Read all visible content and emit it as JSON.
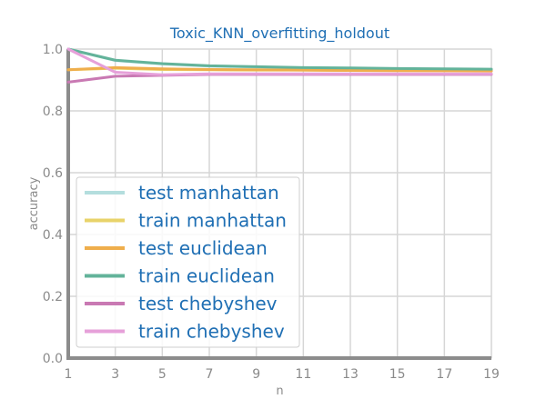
{
  "chart_data": {
    "type": "line",
    "title": "Toxic_KNN_overfitting_holdout",
    "xlabel": "n",
    "ylabel": "accuracy",
    "x": [
      1,
      3,
      5,
      7,
      9,
      11,
      13,
      15,
      17,
      19
    ],
    "x_ticks": [
      "1",
      "3",
      "5",
      "7",
      "9",
      "11",
      "13",
      "15",
      "17",
      "19"
    ],
    "y_ticks": [
      "0.0",
      "0.2",
      "0.4",
      "0.6",
      "0.8",
      "1.0"
    ],
    "xlim": [
      1,
      19
    ],
    "ylim": [
      0,
      1
    ],
    "grid": true,
    "legend_position": "lower-left",
    "series": [
      {
        "name": "test manhattan",
        "color": "#b4dede",
        "values": [
          1.0,
          0.963,
          0.952,
          0.945,
          0.942,
          0.939,
          0.938,
          0.936,
          0.935,
          0.934
        ]
      },
      {
        "name": "train manhattan",
        "color": "#e8d36a",
        "values": [
          0.933,
          0.938,
          0.934,
          0.933,
          0.932,
          0.932,
          0.931,
          0.931,
          0.93,
          0.93
        ]
      },
      {
        "name": "test euclidean",
        "color": "#efae4c",
        "values": [
          0.933,
          0.94,
          0.936,
          0.934,
          0.933,
          0.932,
          0.931,
          0.93,
          0.93,
          0.929
        ]
      },
      {
        "name": "train euclidean",
        "color": "#63b39a",
        "values": [
          1.0,
          0.964,
          0.953,
          0.946,
          0.943,
          0.94,
          0.939,
          0.937,
          0.936,
          0.935
        ]
      },
      {
        "name": "test chebyshev",
        "color": "#c979b3",
        "values": [
          0.893,
          0.912,
          0.915,
          0.918,
          0.918,
          0.918,
          0.918,
          0.918,
          0.918,
          0.918
        ]
      },
      {
        "name": "train chebyshev",
        "color": "#e6a0d9",
        "values": [
          1.0,
          0.925,
          0.917,
          0.92,
          0.92,
          0.92,
          0.92,
          0.92,
          0.92,
          0.92
        ]
      }
    ]
  }
}
